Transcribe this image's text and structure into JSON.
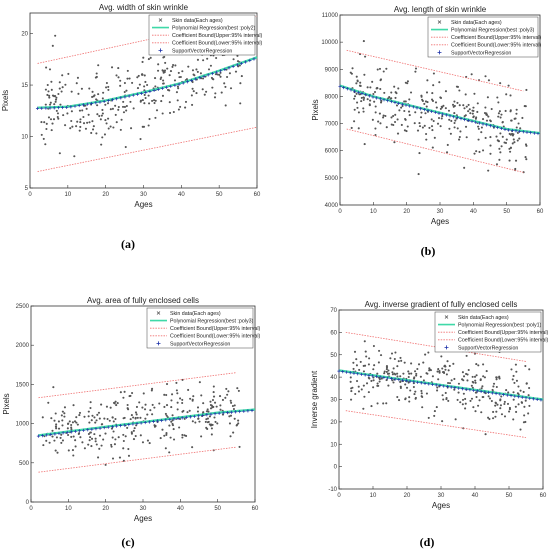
{
  "chart_data": [
    {
      "type": "scatter",
      "title": "Avg. width of skin wrinkle",
      "xlabel": "Ages",
      "ylabel": "Pixels",
      "xlim": [
        0,
        60
      ],
      "ylim": [
        5,
        22
      ],
      "xticks": [
        "0",
        "10",
        "20",
        "30",
        "40",
        "50",
        "60"
      ],
      "yticks": [
        "5",
        "10",
        "15",
        "20"
      ],
      "caption": "(a)",
      "legend_position": "top-right",
      "legend": [
        "Skin data(Each ages)",
        "Polynomial Regression(best :poly2)",
        "Coefficient Bound(Upper:95% interval)",
        "Coefficient Bound(Lower:95% interval)",
        "SupportVectorRegression"
      ],
      "fit": {
        "kind": "poly2",
        "points": [
          [
            2,
            12.8
          ],
          [
            10,
            12.9
          ],
          [
            20,
            13.5
          ],
          [
            30,
            14.3
          ],
          [
            40,
            15.2
          ],
          [
            50,
            16.4
          ],
          [
            60,
            17.7
          ]
        ]
      },
      "upper": [
        [
          2,
          17.1
        ],
        [
          60,
          21.7
        ]
      ],
      "lower": [
        [
          2,
          6.6
        ],
        [
          60,
          10.9
        ]
      ],
      "scatter": {
        "n": 330,
        "seed": 11,
        "xmin": 3,
        "xmax": 56,
        "base": "fit",
        "spread": 2.6
      }
    },
    {
      "type": "scatter",
      "title": "Avg. length of skin wrinkle",
      "xlabel": "Ages",
      "ylabel": "Pixels",
      "xlim": [
        0,
        60
      ],
      "ylim": [
        4000,
        11000
      ],
      "xticks": [
        "0",
        "10",
        "20",
        "30",
        "40",
        "50",
        "60"
      ],
      "yticks": [
        "4000",
        "5000",
        "6000",
        "7000",
        "8000",
        "9000",
        "10000",
        "11000"
      ],
      "caption": "(b)",
      "legend_position": "top-right",
      "legend": [
        "Skin data(Each ages)",
        "Polynomial Regression(best :poly3)",
        "Coefficient Bound(Upper:95% interval)",
        "Coefficient Bound(Lower:95% interval)",
        "SupportVectorRegression"
      ],
      "fit": {
        "kind": "poly3",
        "points": [
          [
            0,
            8400
          ],
          [
            10,
            8000
          ],
          [
            20,
            7700
          ],
          [
            30,
            7400
          ],
          [
            40,
            7100
          ],
          [
            50,
            6800
          ],
          [
            60,
            6650
          ]
        ]
      },
      "upper": [
        [
          2,
          9700
        ],
        [
          55,
          8200
        ]
      ],
      "lower": [
        [
          2,
          6800
        ],
        [
          55,
          5200
        ]
      ],
      "scatter": {
        "n": 330,
        "seed": 23,
        "xmin": 3,
        "xmax": 56,
        "base": "fit",
        "spread": 900
      }
    },
    {
      "type": "scatter",
      "title": "Avg. area of fully enclosed cells",
      "xlabel": "Ages",
      "ylabel": "Pixels",
      "xlim": [
        0,
        60
      ],
      "ylim": [
        0,
        2500
      ],
      "xticks": [
        "0",
        "10",
        "20",
        "30",
        "40",
        "50",
        "60"
      ],
      "yticks": [
        "0",
        "500",
        "1000",
        "1500",
        "2000",
        "2500"
      ],
      "caption": "(c)",
      "legend_position": "top-right",
      "legend": [
        "Skin data(Each ages)",
        "Polynomial Regression(best :poly3)",
        "Coefficient Bound(Upper:95% interval)",
        "Coefficient Bound(Lower:95% interval)",
        "SupportVectorRegression"
      ],
      "fit": {
        "kind": "poly3",
        "points": [
          [
            2,
            850
          ],
          [
            10,
            900
          ],
          [
            20,
            960
          ],
          [
            30,
            1020
          ],
          [
            40,
            1080
          ],
          [
            50,
            1140
          ],
          [
            60,
            1180
          ]
        ]
      },
      "upper": [
        [
          2,
          1330
        ],
        [
          55,
          1650
        ]
      ],
      "lower": [
        [
          2,
          380
        ],
        [
          55,
          700
        ]
      ],
      "scatter": {
        "n": 330,
        "seed": 37,
        "xmin": 3,
        "xmax": 56,
        "base": "fit",
        "spread": 260
      }
    },
    {
      "type": "scatter",
      "title": "Avg. inverse gradient of fully enclosed cells",
      "xlabel": "Ages",
      "ylabel": "Inverse gradient",
      "xlim": [
        0,
        60
      ],
      "ylim": [
        -10,
        70
      ],
      "xticks": [
        "0",
        "10",
        "20",
        "30",
        "40",
        "50",
        "60"
      ],
      "yticks": [
        "-10",
        "0",
        "10",
        "20",
        "30",
        "40",
        "50",
        "60",
        "70"
      ],
      "caption": "(d)",
      "legend_position": "top-right",
      "legend": [
        "Skin data(Each ages)",
        "Polynomial Regression(best :poly1)",
        "Coefficient Bound(Upper:95% interval)",
        "Coefficient Bound(Lower:95% interval)",
        "SupportVectorRegression"
      ],
      "fit": {
        "kind": "poly1",
        "points": [
          [
            0,
            43
          ],
          [
            60,
            30
          ]
        ]
      },
      "upper": [
        [
          2,
          60
        ],
        [
          55,
          47
        ]
      ],
      "lower": [
        [
          2,
          25
        ],
        [
          55,
          13
        ]
      ],
      "scatter": {
        "n": 330,
        "seed": 53,
        "xmin": 3,
        "xmax": 56,
        "base": "fit",
        "spread": 9
      }
    }
  ],
  "colors": {
    "scatter": "#555555",
    "poly": "#3fd9a8",
    "bound": "#f07070",
    "svr": "#1a2fa8",
    "axis": "#333333"
  }
}
